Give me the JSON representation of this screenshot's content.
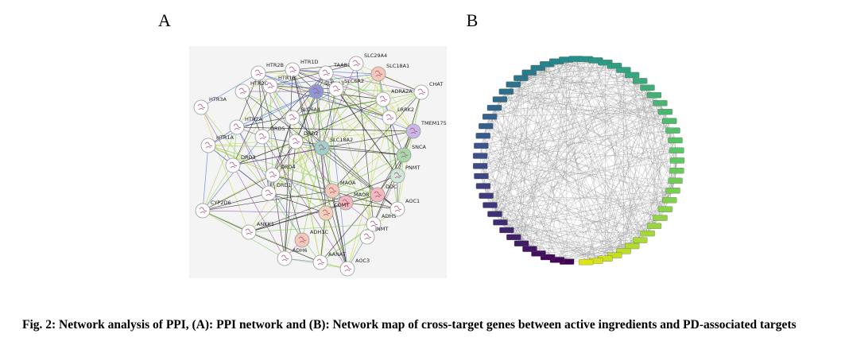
{
  "panels": [
    {
      "label": "A",
      "nodes": [
        {
          "label": "HTR2B",
          "color": "#ffffff"
        },
        {
          "label": "HTR1D",
          "color": "#ffffff"
        },
        {
          "label": "TAAR1",
          "color": "#ffffff"
        },
        {
          "label": "SLC29A4",
          "color": "#ffffff"
        },
        {
          "label": "SLC18A1",
          "color": "#f2c9b8"
        },
        {
          "label": "HTR1B",
          "color": "#ffffff"
        },
        {
          "label": "HTR2C",
          "color": "#ffffff"
        },
        {
          "label": "SLC6A3",
          "color": "#8d97d6"
        },
        {
          "label": "SLC6A2",
          "color": "#ffffff"
        },
        {
          "label": "ADRA2A",
          "color": "#ffffff"
        },
        {
          "label": "CHAT",
          "color": "#ffffff"
        },
        {
          "label": "HTR3A",
          "color": "#ffffff"
        },
        {
          "label": "LRRK2",
          "color": "#ffffff"
        },
        {
          "label": "TMEM175",
          "color": "#c8b8e6"
        },
        {
          "label": "HTR2A",
          "color": "#ffffff"
        },
        {
          "label": "DRD5",
          "color": "#ffffff"
        },
        {
          "label": "DRD2",
          "color": "#ffffff"
        },
        {
          "label": "SLC18A2",
          "color": "#9fd1c8"
        },
        {
          "label": "SLC6A4",
          "color": "#ffffff"
        },
        {
          "label": "SNCA",
          "color": "#a8d8a8"
        },
        {
          "label": "HTR1A",
          "color": "#ffffff"
        },
        {
          "label": "DRD3",
          "color": "#ffffff"
        },
        {
          "label": "PNMT",
          "color": "#cfe8d8"
        },
        {
          "label": "DRD4",
          "color": "#ffffff"
        },
        {
          "label": "DDC",
          "color": "#f4b8c0"
        },
        {
          "label": "MAOA",
          "color": "#f2c9b8"
        },
        {
          "label": "MAOB",
          "color": "#f4b8c0"
        },
        {
          "label": "DRD1",
          "color": "#ffffff"
        },
        {
          "label": "AOC1",
          "color": "#ffffff"
        },
        {
          "label": "CYP2D6",
          "color": "#ffffff"
        },
        {
          "label": "COMT",
          "color": "#f2d2b8"
        },
        {
          "label": "ADH5",
          "color": "#ffffff"
        },
        {
          "label": "INMT",
          "color": "#ffffff"
        },
        {
          "label": "ANKK1",
          "color": "#ffffff"
        },
        {
          "label": "ADH1C",
          "color": "#f2c9b8"
        },
        {
          "label": "ADH6",
          "color": "#ffffff"
        },
        {
          "label": "AANAT",
          "color": "#ffffff"
        },
        {
          "label": "AOC3",
          "color": "#ffffff"
        }
      ]
    },
    {
      "label": "B"
    }
  ],
  "caption": "Fig. 2: Network analysis of PPI, (A): PPI network and (B): Network map of cross-target genes between active ingredients and PD-associated targets"
}
